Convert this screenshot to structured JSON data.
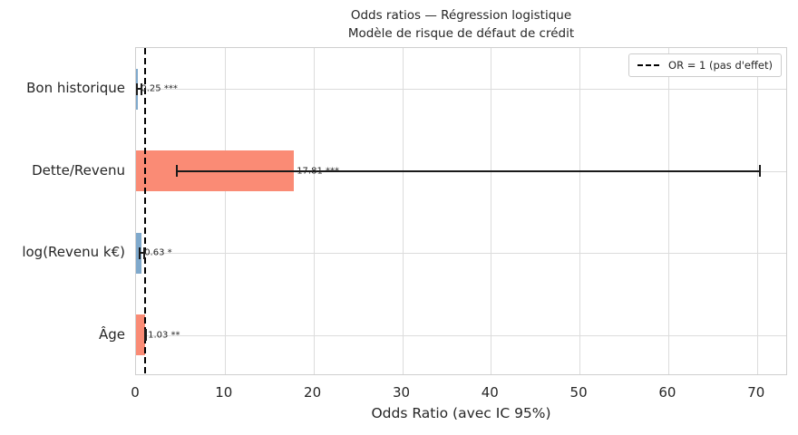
{
  "chart_data": {
    "type": "bar",
    "orientation": "horizontal",
    "title": "Odds ratios — Régression logistique",
    "subtitle": "Modèle de risque de défaut de crédit",
    "xlabel": "Odds Ratio (avec IC 95%)",
    "categories": [
      "Bon historique",
      "Dette/Revenu",
      "log(Revenu k€)",
      "Âge"
    ],
    "values": [
      0.25,
      17.81,
      0.63,
      1.03
    ],
    "ci_low": [
      0.1,
      4.55,
      0.42,
      0.99
    ],
    "ci_high": [
      0.6,
      70.3,
      0.95,
      1.07
    ],
    "bar_labels": [
      "0.25 ***",
      "17.81 ***",
      "0.63 *",
      "1.03 **"
    ],
    "bar_colors": [
      "#7fa9cc",
      "#fa8b75",
      "#7fa9cc",
      "#fa8b75"
    ],
    "reference_line": {
      "x": 1,
      "label": "OR = 1 (pas d'effet)",
      "color": "#000000",
      "style": "dashed"
    },
    "xticks": [
      0,
      10,
      20,
      30,
      40,
      50,
      60,
      70
    ],
    "xlim": [
      0,
      73.5
    ],
    "grid": true,
    "grid_color": "#dcdcdc",
    "legend_position": "upper right",
    "errorbar_color": "#1a1a1a"
  }
}
